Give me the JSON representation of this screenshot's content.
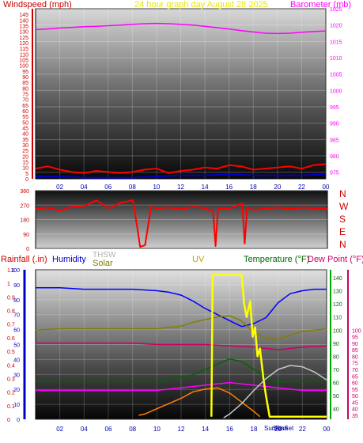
{
  "chart_data": [
    {
      "type": "line",
      "title": "24 hour graph day   August 28 2025",
      "ylabel_left": "Windspeed (mph)",
      "ylabel_right": "Barometer (mb)",
      "x_ticks": [
        "02",
        "04",
        "06",
        "08",
        "10",
        "12",
        "14",
        "16",
        "18",
        "20",
        "22",
        "00"
      ],
      "left_ticks": [
        0,
        5,
        10,
        15,
        20,
        25,
        30,
        35,
        40,
        45,
        50,
        55,
        60,
        65,
        70,
        75,
        80,
        85,
        90,
        95,
        100,
        105,
        110,
        115,
        120,
        125,
        130,
        135,
        140,
        145
      ],
      "right_ticks": [
        975,
        980,
        985,
        990,
        995,
        1000,
        1005,
        1010,
        1015,
        1020,
        1025
      ],
      "ylim_left": [
        0,
        150
      ],
      "ylim_right": [
        973,
        1025
      ],
      "series": [
        {
          "name": "Barometer",
          "axis": "right",
          "color": "#ff00ff",
          "x": [
            0,
            1,
            2,
            3,
            4,
            5,
            6,
            7,
            8,
            9,
            10,
            11,
            12,
            13,
            14,
            15,
            16,
            17,
            18,
            19,
            20,
            21,
            22,
            23,
            24
          ],
          "values": [
            1018.6,
            1018.8,
            1019.1,
            1019.3,
            1019.5,
            1019.6,
            1019.8,
            1020.0,
            1020.2,
            1020.4,
            1020.5,
            1020.4,
            1020.2,
            1020.0,
            1019.6,
            1019.2,
            1018.8,
            1018.3,
            1017.9,
            1017.5,
            1017.4,
            1017.5,
            1017.8,
            1018.0,
            1018.2
          ]
        },
        {
          "name": "Wind gust",
          "axis": "left",
          "color": "#ff0000",
          "x": [
            0,
            1,
            2,
            3,
            4,
            5,
            6,
            7,
            8,
            9,
            10,
            11,
            12,
            13,
            14,
            15,
            16,
            17,
            18,
            19,
            20,
            21,
            22,
            23,
            24
          ],
          "values": [
            9,
            11,
            8,
            6,
            5,
            7,
            6,
            5,
            6,
            8,
            9,
            5,
            7,
            8,
            10,
            9,
            12,
            11,
            8,
            9,
            10,
            11,
            9,
            12,
            13
          ]
        },
        {
          "name": "Wind average",
          "axis": "left",
          "color": "#0000cc",
          "x": [
            0,
            2,
            4,
            6,
            8,
            10,
            12,
            14,
            16,
            18,
            20,
            22,
            24
          ],
          "values": [
            2,
            2,
            1,
            1,
            1,
            2,
            3,
            3,
            4,
            3,
            3,
            3,
            4
          ]
        }
      ]
    },
    {
      "type": "line",
      "ylabel_right": "Wind direction",
      "compass_labels": [
        "N",
        "W",
        "S",
        "E",
        "N"
      ],
      "left_ticks": [
        0,
        90,
        180,
        270,
        360
      ],
      "ylim": [
        0,
        360
      ],
      "series": [
        {
          "name": "Direction",
          "color": "#ff0000",
          "x": [
            0,
            1,
            2,
            3,
            4,
            5,
            6,
            7,
            8,
            8.4,
            8.6,
            9,
            9.5,
            10,
            11,
            12,
            13,
            14,
            14.6,
            14.8,
            15,
            16,
            17,
            17.2,
            17.4,
            18,
            19,
            20,
            21,
            22,
            23,
            24
          ],
          "values": [
            245,
            255,
            235,
            260,
            265,
            300,
            250,
            285,
            300,
            110,
            10,
            20,
            260,
            250,
            255,
            245,
            260,
            250,
            230,
            15,
            245,
            250,
            280,
            30,
            250,
            240,
            250,
            255,
            245,
            255,
            250,
            245
          ]
        }
      ]
    },
    {
      "type": "line",
      "ylabel_left": "Rainfall (.in)",
      "label_humidity": "Humidity",
      "label_thsw": "THSW",
      "label_solar": "Solar",
      "label_uv": "UV",
      "label_temperature": "Temperature (°F)",
      "label_dewpoint": "Dew Point (°F)",
      "sun_labels": [
        "SunRise",
        "SunSet"
      ],
      "x_ticks": [
        "02",
        "04",
        "06",
        "08",
        "10",
        "12",
        "14",
        "16",
        "18",
        "20",
        "22",
        "00"
      ],
      "rain_ticks": [
        0,
        0.1,
        0.2,
        0.3,
        0.4,
        0.5,
        0.6,
        0.7,
        0.8,
        0.9,
        1,
        1.1
      ],
      "humidity_ticks": [
        0,
        10,
        20,
        30,
        40,
        50,
        60,
        70,
        80,
        90,
        100
      ],
      "temp_ticks": [
        40,
        50,
        60,
        70,
        80,
        90,
        100,
        110,
        120,
        130,
        140
      ],
      "dew_ticks": [
        35,
        40,
        45,
        50,
        55,
        60,
        65,
        70,
        75,
        80,
        85,
        90,
        95,
        100
      ],
      "ylim_temp": [
        32,
        146
      ],
      "series": [
        {
          "name": "Humidity",
          "axis": "humidity",
          "color": "#0000ff",
          "x": [
            0,
            2,
            4,
            6,
            8,
            10,
            11,
            12,
            13,
            14,
            15,
            16,
            17,
            18,
            19,
            20,
            21,
            22,
            23,
            24
          ],
          "values": [
            88,
            88,
            87,
            87,
            87,
            86,
            85,
            83,
            79,
            74,
            70,
            66,
            62,
            64,
            68,
            78,
            84,
            86,
            87,
            87
          ]
        },
        {
          "name": "THSW",
          "axis": "temp",
          "color": "#808000",
          "x": [
            0,
            2,
            4,
            6,
            8,
            10,
            11,
            12,
            13,
            14,
            15,
            16,
            17,
            18,
            19,
            20,
            21,
            22,
            23,
            24
          ],
          "values": [
            100,
            101,
            101,
            101,
            101,
            101,
            102,
            103,
            106,
            108,
            110,
            111,
            107,
            98,
            94,
            93,
            96,
            99,
            100,
            101
          ]
        },
        {
          "name": "Temperature",
          "axis": "temp",
          "color": "#006600",
          "x": [
            0,
            2,
            4,
            6,
            8,
            10,
            11,
            12,
            13,
            14,
            15,
            16,
            17,
            18,
            19,
            20,
            21,
            22,
            23,
            24
          ],
          "values": [
            61,
            61,
            61,
            61,
            61,
            61,
            62,
            64,
            66,
            70,
            74,
            78,
            76,
            70,
            64,
            60,
            61,
            61,
            61,
            61
          ]
        },
        {
          "name": "Dew Point",
          "axis": "temp",
          "color": "#cc0066",
          "x": [
            0,
            2,
            4,
            6,
            8,
            10,
            12,
            14,
            16,
            18,
            20,
            22,
            24
          ],
          "values": [
            90,
            90,
            90,
            90,
            90,
            89,
            89,
            89,
            88,
            87,
            85,
            87,
            88
          ]
        },
        {
          "name": "Temperature (pink)",
          "axis": "temp",
          "color": "#ff00ff",
          "x": [
            0,
            2,
            4,
            6,
            8,
            10,
            12,
            14,
            16,
            18,
            20,
            22,
            24
          ],
          "values": [
            54,
            54,
            54,
            54,
            54,
            54,
            56,
            58,
            60,
            58,
            56,
            54,
            54
          ]
        },
        {
          "name": "Solar",
          "axis": "temp",
          "color": "#ff8000",
          "x": [
            8.5,
            9,
            10,
            11,
            12,
            13,
            14,
            15,
            16,
            17,
            18,
            18.5
          ],
          "values": [
            35,
            36,
            40,
            44,
            48,
            53,
            55,
            56,
            52,
            45,
            38,
            34
          ]
        },
        {
          "name": "UV",
          "axis": "temp",
          "color": "#ffff00",
          "x": [
            14.5,
            14.6,
            15,
            17,
            17.2,
            17.4,
            17.7,
            17.9,
            18.1,
            18.3,
            18.5,
            18.8,
            19,
            19.3,
            24
          ],
          "values": [
            34,
            142,
            142,
            142,
            120,
            110,
            122,
            95,
            102,
            80,
            86,
            62,
            50,
            34,
            34
          ]
        },
        {
          "name": "Sun",
          "axis": "temp",
          "color": "#c8c8c8",
          "x": [
            15.5,
            16,
            17,
            18,
            19,
            20,
            21,
            22,
            23,
            24
          ],
          "values": [
            33,
            36,
            44,
            54,
            63,
            70,
            73,
            72,
            68,
            62
          ]
        }
      ]
    }
  ]
}
